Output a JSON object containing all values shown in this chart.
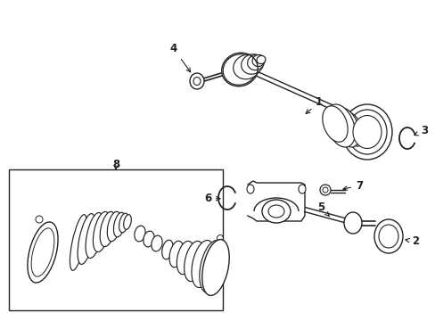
{
  "background_color": "#ffffff",
  "line_color": "#222222",
  "fig_width": 4.89,
  "fig_height": 3.6,
  "dpi": 100
}
